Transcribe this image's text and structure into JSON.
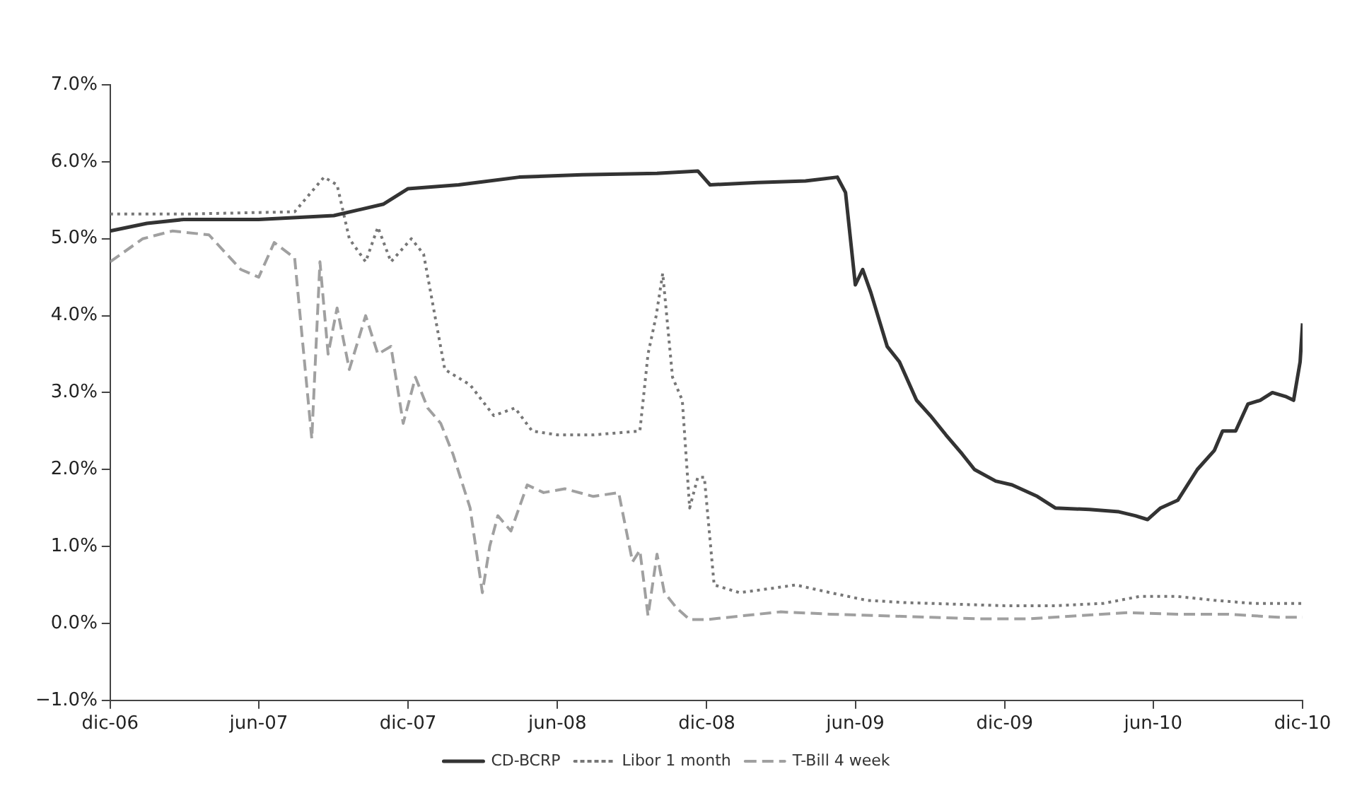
{
  "chart_data": {
    "type": "line",
    "grid": false,
    "legend": "bottom",
    "marker": "none",
    "xlim": [
      "2006-12-01",
      "2010-12-01"
    ],
    "xticks": [
      {
        "value": "2006-12-01",
        "label": "dic-06"
      },
      {
        "value": "2007-06-01",
        "label": "jun-07"
      },
      {
        "value": "2007-12-01",
        "label": "dic-07"
      },
      {
        "value": "2008-06-01",
        "label": "jun-08"
      },
      {
        "value": "2008-12-01",
        "label": "dic-08"
      },
      {
        "value": "2009-06-01",
        "label": "jun-09"
      },
      {
        "value": "2009-12-01",
        "label": "dic-09"
      },
      {
        "value": "2010-06-01",
        "label": "jun-10"
      },
      {
        "value": "2010-12-01",
        "label": "dic-10"
      }
    ],
    "ylim": [
      -1,
      7
    ],
    "yticks": [
      {
        "value": -1,
        "label": "−1.0%"
      },
      {
        "value": 0,
        "label": "0.0%"
      },
      {
        "value": 1,
        "label": "1.0%"
      },
      {
        "value": 2,
        "label": "2.0%"
      },
      {
        "value": 3,
        "label": "3.0%"
      },
      {
        "value": 4,
        "label": "4.0%"
      },
      {
        "value": 5,
        "label": "5.0%"
      },
      {
        "value": 6,
        "label": "6.0%"
      },
      {
        "value": 7,
        "label": "7.0%"
      }
    ],
    "series": [
      {
        "name": "CD-BCRP",
        "color": "#333333",
        "line_style": "solid",
        "x": [
          "2006-12-01",
          "2007-01-15",
          "2007-03-01",
          "2007-06-01",
          "2007-09-01",
          "2007-11-01",
          "2007-12-01",
          "2008-02-01",
          "2008-04-15",
          "2008-07-01",
          "2008-10-01",
          "2008-11-20",
          "2008-12-05",
          "2009-02-01",
          "2009-04-01",
          "2009-05-10",
          "2009-05-20",
          "2009-06-01",
          "2009-06-10",
          "2009-06-20",
          "2009-07-10",
          "2009-07-25",
          "2009-08-15",
          "2009-09-01",
          "2009-09-20",
          "2009-10-10",
          "2009-10-25",
          "2009-11-20",
          "2009-12-10",
          "2010-01-10",
          "2010-02-01",
          "2010-03-15",
          "2010-04-20",
          "2010-05-10",
          "2010-05-25",
          "2010-06-10",
          "2010-07-01",
          "2010-07-25",
          "2010-08-15",
          "2010-08-25",
          "2010-09-10",
          "2010-09-25",
          "2010-10-10",
          "2010-10-25",
          "2010-11-10",
          "2010-11-20",
          "2010-11-28",
          "2010-12-01"
        ],
        "values": [
          5.1,
          5.2,
          5.25,
          5.25,
          5.3,
          5.45,
          5.65,
          5.7,
          5.8,
          5.83,
          5.85,
          5.88,
          5.7,
          5.73,
          5.75,
          5.8,
          5.6,
          4.4,
          4.6,
          4.3,
          3.6,
          3.4,
          2.9,
          2.7,
          2.45,
          2.2,
          2.0,
          1.85,
          1.8,
          1.65,
          1.5,
          1.48,
          1.45,
          1.4,
          1.35,
          1.5,
          1.6,
          2.0,
          2.25,
          2.5,
          2.5,
          2.85,
          2.9,
          3.0,
          2.95,
          2.9,
          3.4,
          3.9
        ]
      },
      {
        "name": "Libor 1 month",
        "color": "#777777",
        "line_style": "dotted",
        "x": [
          "2006-12-01",
          "2007-03-01",
          "2007-07-15",
          "2007-08-20",
          "2007-09-05",
          "2007-09-20",
          "2007-10-10",
          "2007-10-25",
          "2007-11-10",
          "2007-12-05",
          "2007-12-20",
          "2008-01-15",
          "2008-02-15",
          "2008-03-15",
          "2008-04-10",
          "2008-05-01",
          "2008-06-01",
          "2008-07-15",
          "2008-09-10",
          "2008-09-20",
          "2008-09-30",
          "2008-10-08",
          "2008-10-20",
          "2008-11-01",
          "2008-11-10",
          "2008-11-20",
          "2008-11-28",
          "2008-12-10",
          "2009-01-10",
          "2009-02-15",
          "2009-03-20",
          "2009-05-01",
          "2009-06-15",
          "2009-08-01",
          "2009-10-01",
          "2009-12-01",
          "2010-02-01",
          "2010-04-01",
          "2010-05-15",
          "2010-07-01",
          "2010-08-15",
          "2010-10-01",
          "2010-12-01"
        ],
        "values": [
          5.32,
          5.32,
          5.35,
          5.8,
          5.7,
          5.0,
          4.7,
          5.15,
          4.7,
          5.0,
          4.8,
          3.3,
          3.1,
          2.7,
          2.8,
          2.5,
          2.45,
          2.45,
          2.5,
          3.5,
          4.0,
          4.55,
          3.2,
          2.9,
          1.5,
          1.9,
          1.9,
          0.5,
          0.4,
          0.45,
          0.5,
          0.4,
          0.3,
          0.27,
          0.25,
          0.23,
          0.23,
          0.26,
          0.35,
          0.35,
          0.3,
          0.26,
          0.26
        ]
      },
      {
        "name": "T-Bill 4 week",
        "color": "#a0a0a0",
        "line_style": "dashed",
        "x": [
          "2006-12-01",
          "2007-01-10",
          "2007-02-15",
          "2007-04-01",
          "2007-05-10",
          "2007-06-01",
          "2007-06-20",
          "2007-07-15",
          "2007-08-05",
          "2007-08-15",
          "2007-08-25",
          "2007-09-05",
          "2007-09-20",
          "2007-10-10",
          "2007-10-25",
          "2007-11-10",
          "2007-11-25",
          "2007-12-10",
          "2007-12-25",
          "2008-01-10",
          "2008-01-25",
          "2008-02-15",
          "2008-03-01",
          "2008-03-10",
          "2008-03-20",
          "2008-04-05",
          "2008-04-25",
          "2008-05-15",
          "2008-06-10",
          "2008-07-15",
          "2008-08-15",
          "2008-09-01",
          "2008-09-10",
          "2008-09-20",
          "2008-10-01",
          "2008-10-10",
          "2008-10-25",
          "2008-11-10",
          "2008-12-01",
          "2009-01-15",
          "2009-03-01",
          "2009-05-01",
          "2009-07-01",
          "2009-09-01",
          "2009-11-01",
          "2010-01-01",
          "2010-03-01",
          "2010-05-01",
          "2010-07-01",
          "2010-09-01",
          "2010-11-01",
          "2010-12-01"
        ],
        "values": [
          4.7,
          5.0,
          5.1,
          5.05,
          4.6,
          4.5,
          4.95,
          4.75,
          2.4,
          4.7,
          3.5,
          4.1,
          3.3,
          4.0,
          3.5,
          3.6,
          2.6,
          3.2,
          2.8,
          2.6,
          2.2,
          1.5,
          0.4,
          1.0,
          1.4,
          1.2,
          1.8,
          1.7,
          1.75,
          1.65,
          1.7,
          0.8,
          0.95,
          0.1,
          0.9,
          0.4,
          0.2,
          0.05,
          0.05,
          0.1,
          0.15,
          0.12,
          0.1,
          0.08,
          0.06,
          0.06,
          0.1,
          0.14,
          0.12,
          0.12,
          0.08,
          0.08
        ]
      }
    ]
  }
}
